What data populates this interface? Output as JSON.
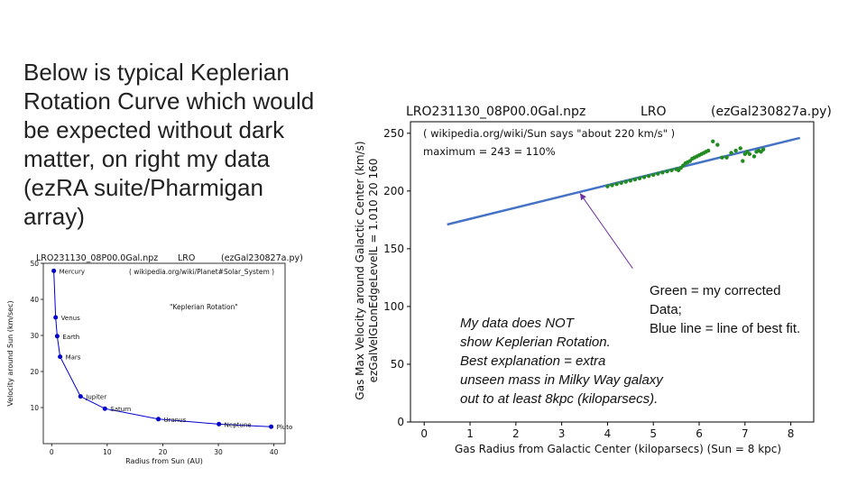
{
  "slide": {
    "text_lines": [
      "Below is typical Keplerian",
      "Rotation Curve which would",
      "be expected without dark",
      "matter, on right my data",
      "(ezRA suite/Pharmigan",
      "array)"
    ],
    "green_note_lines": [
      "Green = my corrected",
      "Data;",
      "Blue line = line of best fit."
    ],
    "italic_note_lines": [
      "My data does NOT",
      "show Keplerian Rotation.",
      "Best explanation = extra",
      "unseen mass in Milky Way galaxy",
      "out to at least 8kpc (kiloparsecs)."
    ]
  },
  "chart_data": [
    {
      "type": "line",
      "header_left": "LRO231130_08P00.0Gal.npz",
      "header_mid": "LRO",
      "header_right": "(ezGal230827a.py)",
      "annotation_top": "( wikipedia.org/wiki/Planet#Solar_System )",
      "annotation_mid": "\"Keplerian Rotation\"",
      "xlabel": "Radius from Sun (AU)",
      "ylabel": "Velocity around Sun (km/sec)",
      "xlim": [
        -1.5,
        42
      ],
      "ylim": [
        0,
        50
      ],
      "x_ticks": [
        0,
        10,
        20,
        30,
        40
      ],
      "y_ticks": [
        10,
        20,
        30,
        40,
        50
      ],
      "grid": false,
      "color": "#0000cc",
      "points": [
        {
          "name": "Mercury",
          "x": 0.39,
          "y": 47.9
        },
        {
          "name": "Venus",
          "x": 0.72,
          "y": 35.0
        },
        {
          "name": "Earth",
          "x": 1.0,
          "y": 29.8
        },
        {
          "name": "Mars",
          "x": 1.52,
          "y": 24.1
        },
        {
          "name": "Jupiter",
          "x": 5.2,
          "y": 13.1
        },
        {
          "name": "Saturn",
          "x": 9.58,
          "y": 9.7
        },
        {
          "name": "Uranus",
          "x": 19.2,
          "y": 6.8
        },
        {
          "name": "Neptune",
          "x": 30.1,
          "y": 5.4
        },
        {
          "name": "Pluto",
          "x": 39.5,
          "y": 4.7
        }
      ]
    },
    {
      "type": "scatter",
      "header_left": "LRO231130_08P00.0Gal.npz",
      "header_mid": "LRO",
      "header_right": "(ezGal230827a.py)",
      "annotation_line1": "( wikipedia.org/wiki/Sun says \"about 220 km/s\" )",
      "annotation_line2": "maximum = 243 = 110%",
      "xlabel": "Gas Radius from Galactic Center (kiloparsecs)  (Sun = 8 kpc)",
      "ylabel_line1": "Gas Max Velocity around Galactic Center (km/s)",
      "ylabel_line2": "ezGalVelGLonEdgeLevelL = 1.010  20  160",
      "xlim": [
        -0.3,
        8.5
      ],
      "ylim": [
        0,
        260
      ],
      "x_ticks": [
        0,
        1,
        2,
        3,
        4,
        5,
        6,
        7,
        8
      ],
      "y_ticks": [
        0,
        50,
        100,
        150,
        200,
        250
      ],
      "grid": false,
      "fit_line": {
        "color": "#4472c4",
        "x": [
          0.5,
          8.2
        ],
        "y": [
          171,
          246
        ]
      },
      "series": [
        {
          "color": "#228b22",
          "x": [
            4.0,
            4.1,
            4.2,
            4.3,
            4.4,
            4.5,
            4.6,
            4.7,
            4.8,
            4.9,
            5.0,
            5.1,
            5.2,
            5.3,
            5.4,
            5.5,
            5.55,
            5.6,
            5.65,
            5.7,
            5.75,
            5.8,
            5.85,
            5.9,
            5.95,
            6.0,
            6.05,
            6.1,
            6.15,
            6.2,
            6.3,
            6.4,
            6.5,
            6.6,
            6.7,
            6.8,
            6.9,
            6.95,
            7.0,
            7.05,
            7.1,
            7.2,
            7.25,
            7.3,
            7.35,
            7.4
          ],
          "y": [
            204,
            205,
            206,
            207,
            208,
            209,
            210,
            211,
            212,
            213,
            214,
            215,
            216,
            217,
            218,
            219,
            218,
            220,
            222,
            224,
            225,
            226,
            228,
            229,
            230,
            231,
            232,
            233,
            234,
            235,
            243,
            240,
            229,
            229,
            233,
            235,
            237,
            226,
            232,
            234,
            232,
            230,
            234,
            235,
            234,
            236
          ]
        }
      ],
      "arrow": {
        "color": "#7030a0",
        "from": [
          4.55,
          133
        ],
        "to": [
          3.4,
          198
        ]
      }
    }
  ]
}
